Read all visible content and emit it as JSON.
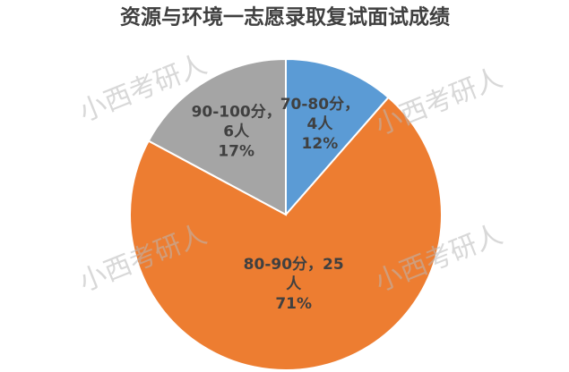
{
  "chart_data": {
    "type": "pie",
    "title": "资源与环境一志愿录取复试面试成绩",
    "values": [
      4,
      25,
      6
    ],
    "data_labels": [
      [
        "70-80分，",
        "4人",
        "12%"
      ],
      [
        "80-90分，25",
        "人",
        "71%"
      ],
      [
        "90-100分，",
        "6人",
        "17%"
      ]
    ],
    "colors": [
      "#5b9bd5",
      "#ed7d31",
      "#a5a5a5"
    ],
    "watermark": "小西考研人"
  }
}
